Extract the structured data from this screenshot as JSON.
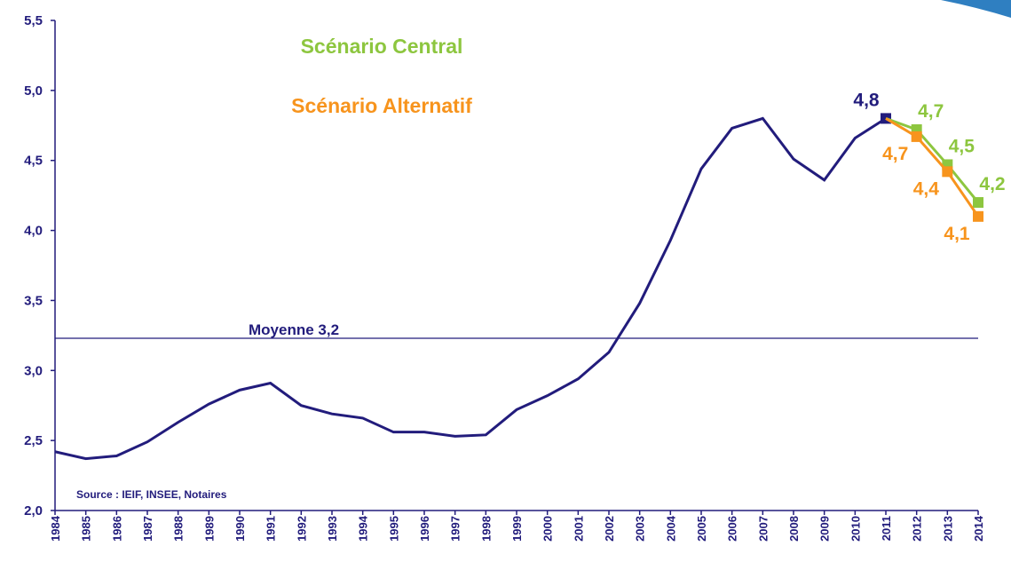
{
  "chart_data": {
    "type": "line",
    "categories": [
      "1984",
      "1985",
      "1986",
      "1987",
      "1988",
      "1989",
      "1990",
      "1991",
      "1992",
      "1993",
      "1994",
      "1995",
      "1996",
      "1997",
      "1998",
      "1999",
      "2000",
      "2001",
      "2002",
      "2003",
      "2004",
      "2005",
      "2006",
      "2007",
      "2008",
      "2009",
      "2010",
      "2011",
      "2012",
      "2013",
      "2014"
    ],
    "series": [
      {
        "color": "#221c7c",
        "values": [
          2.42,
          2.37,
          2.39,
          2.49,
          2.63,
          2.76,
          2.86,
          2.91,
          2.75,
          2.69,
          2.66,
          2.56,
          2.56,
          2.53,
          2.54,
          2.72,
          2.82,
          2.94,
          3.13,
          3.48,
          3.93,
          4.44,
          4.73,
          4.8,
          4.51,
          4.36,
          4.66,
          4.8,
          null,
          null,
          null
        ],
        "value_labels": [
          null,
          null,
          null,
          null,
          null,
          null,
          null,
          null,
          null,
          null,
          null,
          null,
          null,
          null,
          null,
          null,
          null,
          null,
          null,
          null,
          null,
          null,
          null,
          null,
          null,
          null,
          null,
          "4,8",
          null,
          null,
          null
        ]
      },
      {
        "name": "Scénario Central",
        "color": "#8dc63f",
        "values": [
          null,
          null,
          null,
          null,
          null,
          null,
          null,
          null,
          null,
          null,
          null,
          null,
          null,
          null,
          null,
          null,
          null,
          null,
          null,
          null,
          null,
          null,
          null,
          null,
          null,
          null,
          null,
          4.8,
          4.72,
          4.47,
          4.2
        ],
        "value_labels": [
          null,
          null,
          null,
          null,
          null,
          null,
          null,
          null,
          null,
          null,
          null,
          null,
          null,
          null,
          null,
          null,
          null,
          null,
          null,
          null,
          null,
          null,
          null,
          null,
          null,
          null,
          null,
          null,
          "4,7",
          "4,5",
          "4,2"
        ]
      },
      {
        "name": "Scénario Alternatif",
        "color": "#f7941d",
        "values": [
          null,
          null,
          null,
          null,
          null,
          null,
          null,
          null,
          null,
          null,
          null,
          null,
          null,
          null,
          null,
          null,
          null,
          null,
          null,
          null,
          null,
          null,
          null,
          null,
          null,
          null,
          null,
          4.8,
          4.67,
          4.42,
          4.1
        ],
        "value_labels": [
          null,
          null,
          null,
          null,
          null,
          null,
          null,
          null,
          null,
          null,
          null,
          null,
          null,
          null,
          null,
          null,
          null,
          null,
          null,
          null,
          null,
          null,
          null,
          null,
          null,
          null,
          null,
          null,
          "4,7",
          "4,4",
          "4,1"
        ]
      }
    ],
    "ylim": [
      2.0,
      5.5
    ],
    "yticks": [
      {
        "value": 2.0,
        "label": "2,0"
      },
      {
        "value": 2.5,
        "label": "2,5"
      },
      {
        "value": 3.0,
        "label": "3,0"
      },
      {
        "value": 3.5,
        "label": "3,5"
      },
      {
        "value": 4.0,
        "label": "4,0"
      },
      {
        "value": 4.5,
        "label": "4,5"
      },
      {
        "value": 5.0,
        "label": "5,0"
      },
      {
        "value": 5.5,
        "label": "5,5"
      }
    ],
    "reference_line": {
      "value": 3.23,
      "label": "Moyenne 3,2",
      "color": "#221c7c"
    },
    "source": "Source : IEIF, INSEE, Notaires",
    "grid": false
  }
}
